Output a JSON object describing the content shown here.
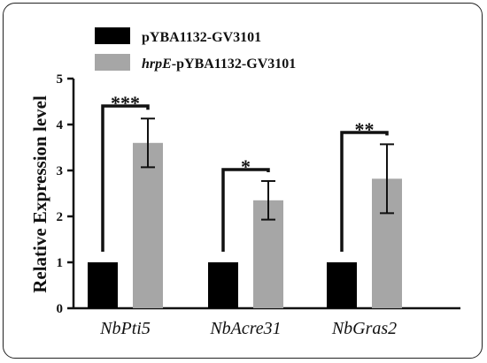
{
  "chart_data": {
    "type": "bar",
    "ylabel": "Relative Expression level",
    "ylim": [
      0,
      5
    ],
    "yticks": [
      "0",
      "1",
      "2",
      "3",
      "4",
      "5"
    ],
    "categories": [
      "NbPti5",
      "NbAcre31",
      "NbGras2"
    ],
    "series": [
      {
        "name": "pYBA1132-GV3101",
        "name_italic": "",
        "color": "#000000",
        "values": [
          1,
          1,
          1
        ],
        "errors": [
          0,
          0,
          0
        ]
      },
      {
        "name": "-pYBA1132-GV3101",
        "name_italic": "hrpE",
        "color": "#a6a6a6",
        "values": [
          3.6,
          2.35,
          2.82
        ],
        "errors": [
          0.53,
          0.42,
          0.75
        ]
      }
    ],
    "significance": [
      "***",
      "*",
      "**"
    ],
    "legend_position": "top",
    "grid": false
  }
}
